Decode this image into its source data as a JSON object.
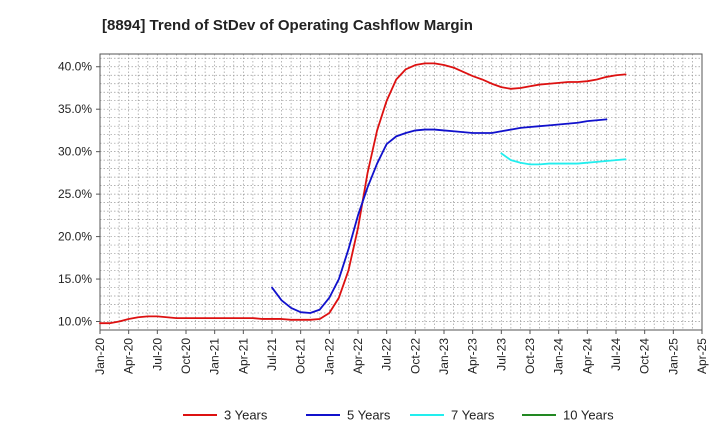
{
  "chart_data": {
    "type": "line",
    "title": "[8894]  Trend of StDev of Operating Cashflow Margin",
    "xlabel": "",
    "ylabel": "",
    "ylim": [
      9,
      41.5
    ],
    "y_ticks": [
      "10.0%",
      "15.0%",
      "20.0%",
      "25.0%",
      "30.0%",
      "35.0%",
      "40.0%"
    ],
    "y_tick_values": [
      10,
      15,
      20,
      25,
      30,
      35,
      40
    ],
    "x_ticks": [
      "Jan-20",
      "Apr-20",
      "Jul-20",
      "Oct-20",
      "Jan-21",
      "Apr-21",
      "Jul-21",
      "Oct-21",
      "Jan-22",
      "Apr-22",
      "Jul-22",
      "Oct-22",
      "Jan-23",
      "Apr-23",
      "Jul-23",
      "Oct-23",
      "Jan-24",
      "Apr-24",
      "Jul-24",
      "Oct-24",
      "Jan-25",
      "Apr-25"
    ],
    "grid": true,
    "legend_position": "bottom",
    "series": [
      {
        "name": "3 Years",
        "color": "#dd1111",
        "points": [
          [
            0,
            9.8
          ],
          [
            1,
            9.8
          ],
          [
            2,
            10.0
          ],
          [
            3,
            10.3
          ],
          [
            4,
            10.5
          ],
          [
            5,
            10.6
          ],
          [
            6,
            10.6
          ],
          [
            7,
            10.5
          ],
          [
            8,
            10.4
          ],
          [
            9,
            10.4
          ],
          [
            10,
            10.4
          ],
          [
            11,
            10.4
          ],
          [
            12,
            10.4
          ],
          [
            13,
            10.4
          ],
          [
            14,
            10.4
          ],
          [
            15,
            10.4
          ],
          [
            16,
            10.4
          ],
          [
            17,
            10.3
          ],
          [
            18,
            10.3
          ],
          [
            19,
            10.3
          ],
          [
            20,
            10.2
          ],
          [
            21,
            10.2
          ],
          [
            22,
            10.2
          ],
          [
            23,
            10.3
          ],
          [
            24,
            11.0
          ],
          [
            25,
            12.8
          ],
          [
            26,
            16.0
          ],
          [
            27,
            21.0
          ],
          [
            28,
            27.5
          ],
          [
            29,
            32.5
          ],
          [
            30,
            36.0
          ],
          [
            31,
            38.5
          ],
          [
            32,
            39.7
          ],
          [
            33,
            40.2
          ],
          [
            34,
            40.4
          ],
          [
            35,
            40.4
          ],
          [
            36,
            40.2
          ],
          [
            37,
            39.9
          ],
          [
            38,
            39.4
          ],
          [
            39,
            38.9
          ],
          [
            40,
            38.5
          ],
          [
            41,
            38.0
          ],
          [
            42,
            37.6
          ],
          [
            43,
            37.4
          ],
          [
            44,
            37.5
          ],
          [
            45,
            37.7
          ],
          [
            46,
            37.9
          ],
          [
            47,
            38.0
          ],
          [
            48,
            38.1
          ],
          [
            49,
            38.2
          ],
          [
            50,
            38.2
          ],
          [
            51,
            38.3
          ],
          [
            52,
            38.5
          ],
          [
            53,
            38.8
          ],
          [
            54,
            39.0
          ],
          [
            55,
            39.1
          ]
        ]
      },
      {
        "name": "5 Years",
        "color": "#1111cc",
        "points": [
          [
            18,
            14.0
          ],
          [
            19,
            12.5
          ],
          [
            20,
            11.6
          ],
          [
            21,
            11.1
          ],
          [
            22,
            11.0
          ],
          [
            23,
            11.4
          ],
          [
            24,
            12.8
          ],
          [
            25,
            15.0
          ],
          [
            26,
            18.5
          ],
          [
            27,
            22.5
          ],
          [
            28,
            25.8
          ],
          [
            29,
            28.6
          ],
          [
            30,
            30.9
          ],
          [
            31,
            31.8
          ],
          [
            32,
            32.2
          ],
          [
            33,
            32.5
          ],
          [
            34,
            32.6
          ],
          [
            35,
            32.6
          ],
          [
            36,
            32.5
          ],
          [
            37,
            32.4
          ],
          [
            38,
            32.3
          ],
          [
            39,
            32.2
          ],
          [
            40,
            32.2
          ],
          [
            41,
            32.2
          ],
          [
            42,
            32.4
          ],
          [
            43,
            32.6
          ],
          [
            44,
            32.8
          ],
          [
            45,
            32.9
          ],
          [
            46,
            33.0
          ],
          [
            47,
            33.1
          ],
          [
            48,
            33.2
          ],
          [
            49,
            33.3
          ],
          [
            50,
            33.4
          ],
          [
            51,
            33.6
          ],
          [
            52,
            33.7
          ],
          [
            53,
            33.8
          ]
        ]
      },
      {
        "name": "7 Years",
        "color": "#22eeee",
        "points": [
          [
            42,
            29.8
          ],
          [
            43,
            29.0
          ],
          [
            44,
            28.7
          ],
          [
            45,
            28.5
          ],
          [
            46,
            28.5
          ],
          [
            47,
            28.6
          ],
          [
            48,
            28.6
          ],
          [
            49,
            28.6
          ],
          [
            50,
            28.6
          ],
          [
            51,
            28.7
          ],
          [
            52,
            28.8
          ],
          [
            53,
            28.9
          ],
          [
            54,
            29.0
          ],
          [
            55,
            29.1
          ]
        ]
      },
      {
        "name": "10 Years",
        "color": "#228822",
        "points": []
      }
    ]
  }
}
